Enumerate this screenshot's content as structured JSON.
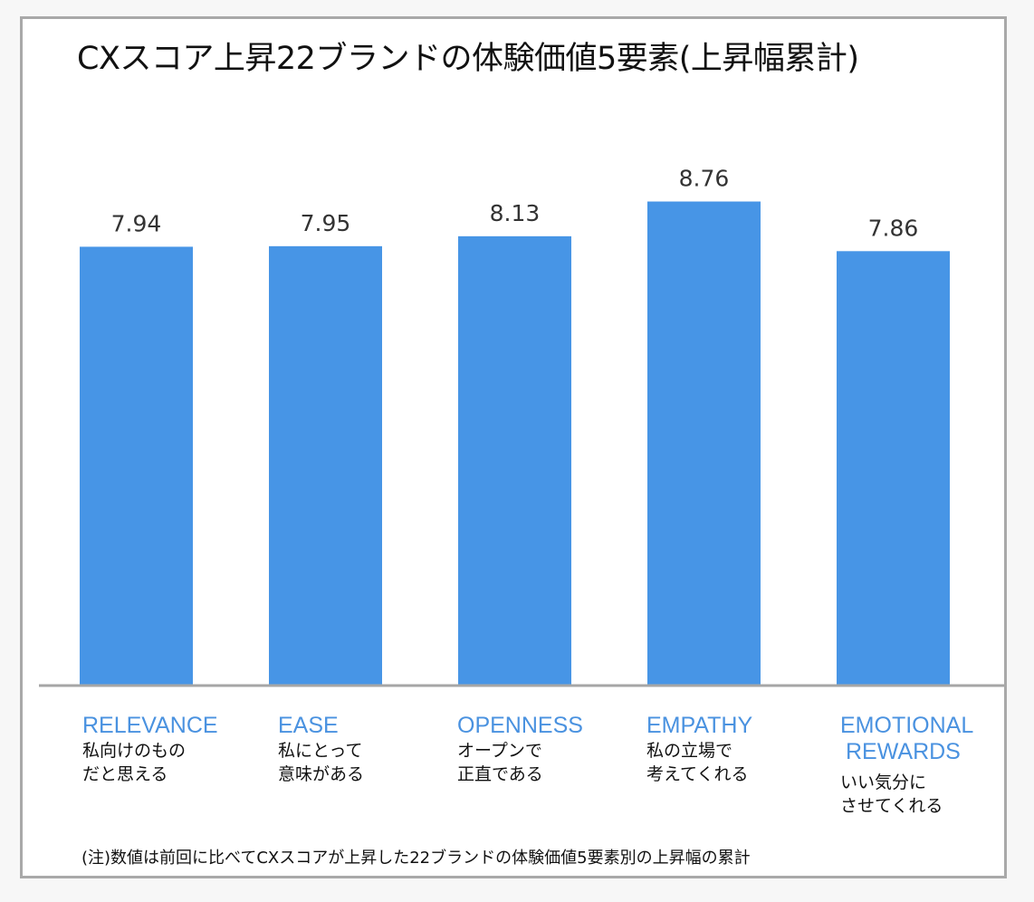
{
  "title": "CXスコア上昇22ブランドの体験価値5要素(上昇幅累計)",
  "footnote": "(注)数値は前回に比べてCXスコアが上昇した22ブランドの体験価値5要素別の上昇幅の累計",
  "colors": {
    "bar": "#4795e6",
    "category_label": "#4a92e0",
    "axis": "#a6a6a6",
    "value_label": "#333333"
  },
  "chart_data": {
    "type": "bar",
    "title": "CXスコア上昇22ブランドの体験価値5要素(上昇幅累計)",
    "categories": [
      "RELEVANCE",
      "EASE",
      "OPENNESS",
      "EMPATHY",
      "EMOTIONAL REWARDS"
    ],
    "values": [
      7.94,
      7.95,
      8.13,
      8.76,
      7.86
    ],
    "value_labels": [
      "7.94",
      "7.95",
      "8.13",
      "8.76",
      "7.86"
    ],
    "ylim": [
      0,
      10
    ],
    "xlabel": "",
    "ylabel": "",
    "grid": false,
    "category_details": [
      {
        "name_lines": [
          "RELEVANCE"
        ],
        "desc_lines": [
          "私向けのもの",
          "だと思える"
        ]
      },
      {
        "name_lines": [
          "EASE"
        ],
        "desc_lines": [
          "私にとって",
          "意味がある"
        ]
      },
      {
        "name_lines": [
          "OPENNESS"
        ],
        "desc_lines": [
          "オープンで",
          "正直である"
        ]
      },
      {
        "name_lines": [
          "EMPATHY"
        ],
        "desc_lines": [
          "私の立場で",
          "考えてくれる"
        ]
      },
      {
        "name_lines": [
          "EMOTIONAL",
          "REWARDS"
        ],
        "desc_lines": [
          "いい気分に",
          "させてくれる"
        ]
      }
    ]
  }
}
